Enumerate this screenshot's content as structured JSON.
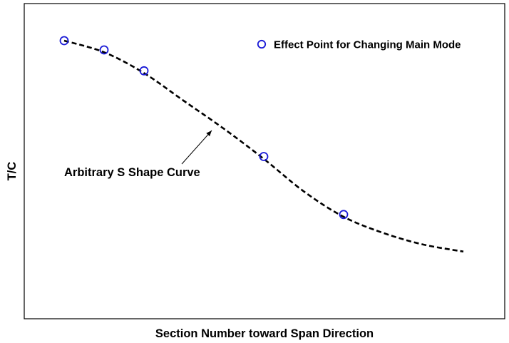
{
  "chart_data": {
    "type": "scatter",
    "title": "",
    "xlabel": "Section Number toward Span Direction",
    "ylabel": "T/C",
    "show_ticks": false,
    "grid": false,
    "legend_position": "top-right",
    "curve": {
      "style": "dashed",
      "color": "#000000",
      "annotation": "Arbitrary S Shape Curve",
      "x": [
        1.0,
        2.0,
        3.0,
        4.0,
        5.0,
        6.0,
        7.0,
        8.0,
        9.0,
        10.0,
        11.0
      ],
      "y": [
        0.96,
        0.91,
        0.82,
        0.7,
        0.58,
        0.45,
        0.31,
        0.2,
        0.13,
        0.08,
        0.05
      ]
    },
    "series": [
      {
        "name": "Effect Point for Changing Main Mode",
        "marker": "open-circle",
        "color": "#1a1ad6",
        "x": [
          1.0,
          2.0,
          3.0,
          6.0,
          8.0
        ],
        "y": [
          0.96,
          0.92,
          0.83,
          0.46,
          0.21
        ]
      }
    ]
  }
}
